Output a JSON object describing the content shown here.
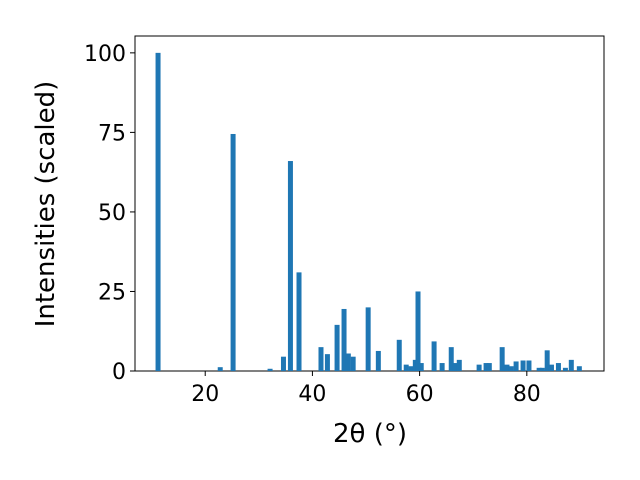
{
  "chart_data": {
    "type": "bar",
    "xlabel": "2θ (°)",
    "ylabel": "Intensities (scaled)",
    "x": [
      11.2,
      22.8,
      25.2,
      32.1,
      34.6,
      35.9,
      37.5,
      41.6,
      42.8,
      44.6,
      45.9,
      46.7,
      47.6,
      50.4,
      52.3,
      56.2,
      57.5,
      58.4,
      59.2,
      59.7,
      60.3,
      62.7,
      64.2,
      65.9,
      66.6,
      67.4,
      71.1,
      72.4,
      73.0,
      75.4,
      76.3,
      77.1,
      78.0,
      79.3,
      80.4,
      82.3,
      82.9,
      83.8,
      84.6,
      85.9,
      87.2,
      88.3,
      89.8
    ],
    "values": [
      100,
      1.2,
      74.5,
      0.7,
      4.5,
      66,
      31,
      7.5,
      5.3,
      14.5,
      19.5,
      5.5,
      4.5,
      20,
      6.3,
      9.8,
      2,
      1.5,
      3.5,
      25,
      2.5,
      9.3,
      2.5,
      7.5,
      2.5,
      3.5,
      2,
      2.5,
      2.5,
      7.5,
      2,
      1.5,
      3,
      3.3,
      3.3,
      1,
      1,
      6.5,
      2,
      2.5,
      1,
      3.5,
      1.5
    ],
    "color": "#1f77b4",
    "xlim": [
      6.9,
      94.4
    ],
    "xticks": [
      20,
      40,
      60,
      80
    ],
    "ylim": [
      0,
      105.3
    ],
    "yticks": [
      0,
      25,
      50,
      75,
      100
    ]
  }
}
